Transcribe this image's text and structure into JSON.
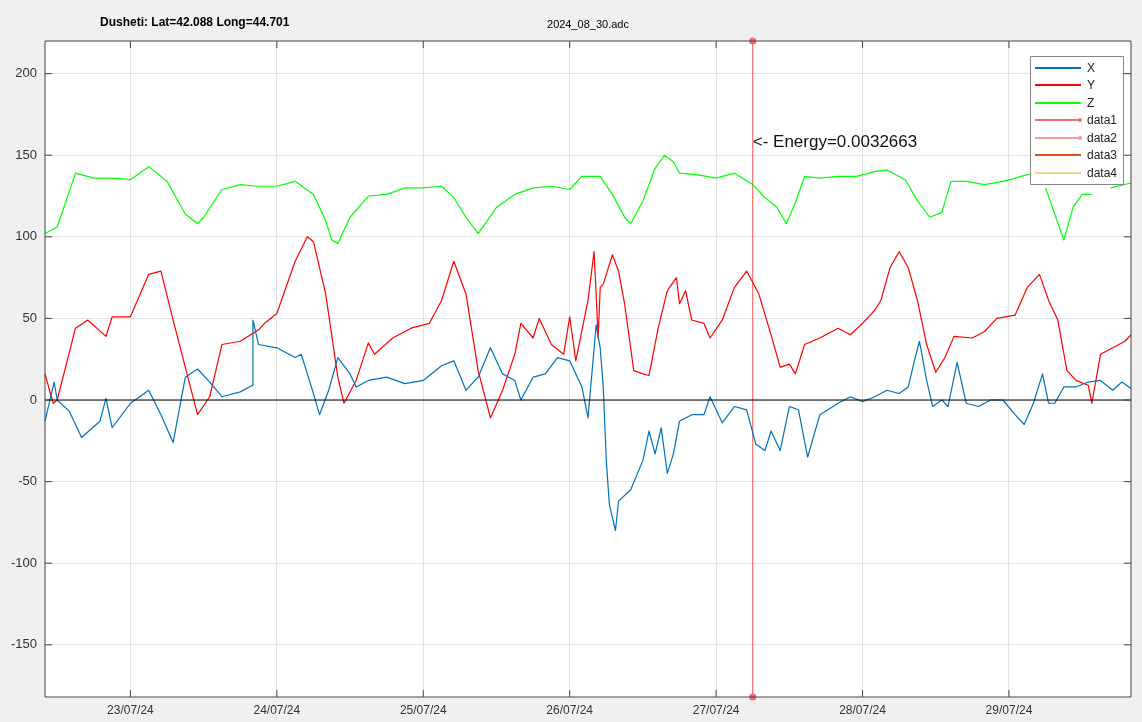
{
  "chart_data": {
    "type": "line",
    "title": "Dusheti: Lat=42.088 Long=44.701",
    "subtitle": "2024_08_30.adc",
    "xlim": [
      "2024-07-22T10:00",
      "2024-07-29T20:00"
    ],
    "xticks": [
      {
        "value": "2024-07-23",
        "label": "23/07/24"
      },
      {
        "value": "2024-07-24",
        "label": "24/07/24"
      },
      {
        "value": "2024-07-25",
        "label": "25/07/24"
      },
      {
        "value": "2024-07-26",
        "label": "26/07/24"
      },
      {
        "value": "2024-07-27",
        "label": "27/07/24"
      },
      {
        "value": "2024-07-28",
        "label": "28/07/24"
      },
      {
        "value": "2024-07-29",
        "label": "29/07/24"
      }
    ],
    "ylim": [
      -182,
      220
    ],
    "yticks": [
      -150,
      -100,
      -50,
      0,
      50,
      100,
      150,
      200
    ],
    "grid": true,
    "legend": "top right",
    "line_style": "solid",
    "ref_lines": [
      {
        "axis": "y",
        "value": 0,
        "color": "#000000"
      }
    ],
    "annotations": [
      {
        "text": "<- Energy=0.0032663",
        "x": "2024-07-27T06:00",
        "y": 158
      }
    ],
    "series": [
      {
        "name": "X",
        "color": "#0072bd",
        "x": [
          "2024-07-22T10:00",
          "2024-07-22T11:30",
          "2024-07-22T12:00",
          "2024-07-22T14:00",
          "2024-07-22T16:00",
          "2024-07-22T19:00",
          "2024-07-22T20:00",
          "2024-07-22T21:00",
          "2024-07-23T00:00",
          "2024-07-23T03:00",
          "2024-07-23T05:00",
          "2024-07-23T07:00",
          "2024-07-23T09:00",
          "2024-07-23T11:00",
          "2024-07-23T13:00",
          "2024-07-23T15:00",
          "2024-07-23T18:00",
          "2024-07-23T20:00",
          "2024-07-23T20:05",
          "2024-07-23T21:00",
          "2024-07-24T00:00",
          "2024-07-24T03:00",
          "2024-07-24T04:00",
          "2024-07-24T06:00",
          "2024-07-24T07:00",
          "2024-07-24T08:30",
          "2024-07-24T10:00",
          "2024-07-24T12:00",
          "2024-07-24T13:00",
          "2024-07-24T15:00",
          "2024-07-24T18:00",
          "2024-07-24T21:00",
          "2024-07-25T00:00",
          "2024-07-25T03:00",
          "2024-07-25T05:00",
          "2024-07-25T07:00",
          "2024-07-25T09:00",
          "2024-07-25T11:00",
          "2024-07-25T13:00",
          "2024-07-25T15:00",
          "2024-07-25T16:00",
          "2024-07-25T18:00",
          "2024-07-25T20:00",
          "2024-07-25T22:00",
          "2024-07-26T00:00",
          "2024-07-26T02:00",
          "2024-07-26T03:00",
          "2024-07-26T04:20",
          "2024-07-26T05:00",
          "2024-07-26T05:30",
          "2024-07-26T06:00",
          "2024-07-26T06:30",
          "2024-07-26T07:30",
          "2024-07-26T08:00",
          "2024-07-26T10:00",
          "2024-07-26T12:00",
          "2024-07-26T13:00",
          "2024-07-26T14:00",
          "2024-07-26T15:00",
          "2024-07-26T16:00",
          "2024-07-26T17:00",
          "2024-07-26T18:00",
          "2024-07-26T20:00",
          "2024-07-26T22:00",
          "2024-07-26T23:00",
          "2024-07-27T01:00",
          "2024-07-27T03:00",
          "2024-07-27T05:00",
          "2024-07-27T06:30",
          "2024-07-27T08:00",
          "2024-07-27T09:00",
          "2024-07-27T10:30",
          "2024-07-27T12:00",
          "2024-07-27T13:30",
          "2024-07-27T15:00",
          "2024-07-27T17:00",
          "2024-07-27T20:00",
          "2024-07-27T22:00",
          "2024-07-28T00:00",
          "2024-07-28T02:00",
          "2024-07-28T04:00",
          "2024-07-28T06:00",
          "2024-07-28T07:30",
          "2024-07-28T08:30",
          "2024-07-28T09:20",
          "2024-07-28T10:30",
          "2024-07-28T11:30",
          "2024-07-28T13:00",
          "2024-07-28T14:00",
          "2024-07-28T15:30",
          "2024-07-28T17:00",
          "2024-07-28T19:00",
          "2024-07-28T21:00",
          "2024-07-28T23:00",
          "2024-07-29T01:00",
          "2024-07-29T02:30",
          "2024-07-29T04:00",
          "2024-07-29T05:30",
          "2024-07-29T06:30",
          "2024-07-29T07:30",
          "2024-07-29T09:00",
          "2024-07-29T11:00",
          "2024-07-29T13:00",
          "2024-07-29T15:00",
          "2024-07-29T17:00",
          "2024-07-29T18:30",
          "2024-07-29T20:00"
        ],
        "values": [
          -13,
          11,
          0,
          -7,
          -23,
          -13,
          1,
          -17,
          -2,
          6,
          -9,
          -26,
          14,
          19,
          11,
          2,
          5,
          9,
          49,
          34,
          32,
          26,
          28,
          4,
          -9,
          6,
          26,
          16,
          8,
          12,
          14,
          10,
          12,
          21,
          24,
          6,
          14,
          32,
          16,
          12,
          0,
          14,
          16,
          26,
          24,
          8,
          -11,
          46,
          32,
          8,
          -37,
          -64,
          -80,
          -62,
          -55,
          -37,
          -19,
          -33,
          -17,
          -45,
          -33,
          -13,
          -9,
          -9,
          2,
          -14,
          -4,
          -6,
          -27,
          -31,
          -19,
          -31,
          -4,
          -6,
          -35,
          -9,
          -2,
          2,
          -1,
          2,
          6,
          4,
          8,
          24,
          36,
          12,
          -4,
          0,
          -4,
          23,
          -2,
          -4,
          0,
          0,
          -9,
          -15,
          -2,
          16,
          -2,
          -2,
          8,
          8,
          11,
          12,
          6,
          11,
          7
        ]
      },
      {
        "name": "Y",
        "color": "#ff0000",
        "x": [
          "2024-07-22T10:00",
          "2024-07-22T11:20",
          "2024-07-22T12:00",
          "2024-07-22T15:00",
          "2024-07-22T17:00",
          "2024-07-22T20:00",
          "2024-07-22T21:00",
          "2024-07-23T00:00",
          "2024-07-23T03:00",
          "2024-07-23T05:00",
          "2024-07-23T07:00",
          "2024-07-23T09:00",
          "2024-07-23T11:00",
          "2024-07-23T13:00",
          "2024-07-23T15:00",
          "2024-07-23T18:00",
          "2024-07-23T21:00",
          "2024-07-23T22:00",
          "2024-07-24T00:00",
          "2024-07-24T03:00",
          "2024-07-24T05:00",
          "2024-07-24T06:00",
          "2024-07-24T08:00",
          "2024-07-24T10:00",
          "2024-07-24T11:00",
          "2024-07-24T13:00",
          "2024-07-24T15:00",
          "2024-07-24T16:00",
          "2024-07-24T19:00",
          "2024-07-24T22:00",
          "2024-07-25T01:00",
          "2024-07-25T03:00",
          "2024-07-25T05:00",
          "2024-07-25T07:00",
          "2024-07-25T09:00",
          "2024-07-25T11:00",
          "2024-07-25T13:00",
          "2024-07-25T15:00",
          "2024-07-25T16:00",
          "2024-07-25T18:00",
          "2024-07-25T19:00",
          "2024-07-25T21:00",
          "2024-07-25T23:00",
          "2024-07-26T00:00",
          "2024-07-26T01:00",
          "2024-07-26T03:00",
          "2024-07-26T04:00",
          "2024-07-26T04:40",
          "2024-07-26T05:00",
          "2024-07-26T05:30",
          "2024-07-26T06:00",
          "2024-07-26T07:00",
          "2024-07-26T08:00",
          "2024-07-26T09:00",
          "2024-07-26T10:30",
          "2024-07-26T12:00",
          "2024-07-26T13:00",
          "2024-07-26T14:30",
          "2024-07-26T16:00",
          "2024-07-26T17:30",
          "2024-07-26T18:00",
          "2024-07-26T19:00",
          "2024-07-26T20:00",
          "2024-07-26T22:00",
          "2024-07-26T23:00",
          "2024-07-27T01:00",
          "2024-07-27T03:00",
          "2024-07-27T05:00",
          "2024-07-27T07:00",
          "2024-07-27T09:00",
          "2024-07-27T10:30",
          "2024-07-27T12:00",
          "2024-07-27T13:00",
          "2024-07-27T14:30",
          "2024-07-27T17:00",
          "2024-07-27T20:00",
          "2024-07-27T22:00",
          "2024-07-28T00:00",
          "2024-07-28T02:00",
          "2024-07-28T03:00",
          "2024-07-28T04:30",
          "2024-07-28T06:00",
          "2024-07-28T07:30",
          "2024-07-28T09:00",
          "2024-07-28T10:30",
          "2024-07-28T12:00",
          "2024-07-28T13:30",
          "2024-07-28T15:00",
          "2024-07-28T18:00",
          "2024-07-28T20:00",
          "2024-07-28T22:00",
          "2024-07-29T01:00",
          "2024-07-29T03:00",
          "2024-07-29T05:00",
          "2024-07-29T06:30",
          "2024-07-29T08:00",
          "2024-07-29T09:30",
          "2024-07-29T11:00",
          "2024-07-29T13:00",
          "2024-07-29T13:35",
          "2024-07-29T15:00",
          "2024-07-29T17:00",
          "2024-07-29T19:00",
          "2024-07-29T20:00"
        ],
        "values": [
          16,
          -2,
          0,
          44,
          49,
          39,
          51,
          51,
          77,
          79,
          49,
          20,
          -9,
          2,
          34,
          36,
          43,
          47,
          53,
          85,
          100,
          97,
          65,
          14,
          -2,
          12,
          35,
          28,
          38,
          44,
          47,
          61,
          85,
          65,
          18,
          -11,
          6,
          28,
          47,
          38,
          50,
          34,
          28,
          51,
          24,
          61,
          91,
          38,
          69,
          71,
          77,
          89,
          79,
          59,
          18,
          16,
          15,
          44,
          67,
          75,
          59,
          67,
          49,
          47,
          38,
          49,
          69,
          79,
          65,
          40,
          20,
          22,
          16,
          34,
          38,
          44,
          40,
          47,
          55,
          61,
          81,
          91,
          81,
          61,
          34,
          17,
          26,
          39,
          38,
          42,
          50,
          52,
          69,
          77,
          61,
          49,
          18,
          12,
          9,
          -2,
          28,
          32,
          36,
          40
        ]
      },
      {
        "name": "Z",
        "color": "#00ff00",
        "x": [
          "2024-07-22T10:00",
          "2024-07-22T12:00",
          "2024-07-22T15:00",
          "2024-07-22T18:00",
          "2024-07-22T21:00",
          "2024-07-23T00:00",
          "2024-07-23T03:00",
          "2024-07-23T06:00",
          "2024-07-23T09:00",
          "2024-07-23T11:00",
          "2024-07-23T12:00",
          "2024-07-23T15:00",
          "2024-07-23T18:00",
          "2024-07-23T21:00",
          "2024-07-24T00:00",
          "2024-07-24T03:00",
          "2024-07-24T06:00",
          "2024-07-24T08:00",
          "2024-07-24T09:00",
          "2024-07-24T10:00",
          "2024-07-24T12:00",
          "2024-07-24T15:00",
          "2024-07-24T18:00",
          "2024-07-24T21:00",
          "2024-07-25T00:00",
          "2024-07-25T03:00",
          "2024-07-25T05:00",
          "2024-07-25T07:00",
          "2024-07-25T09:00",
          "2024-07-25T12:00",
          "2024-07-25T15:00",
          "2024-07-25T18:00",
          "2024-07-25T21:00",
          "2024-07-26T00:00",
          "2024-07-26T02:00",
          "2024-07-26T05:00",
          "2024-07-26T07:00",
          "2024-07-26T09:00",
          "2024-07-26T10:00",
          "2024-07-26T12:00",
          "2024-07-26T14:00",
          "2024-07-26T15:30",
          "2024-07-26T17:00",
          "2024-07-26T18:00",
          "2024-07-26T21:00",
          "2024-07-27T00:00",
          "2024-07-27T03:00",
          "2024-07-27T06:00",
          "2024-07-27T08:00",
          "2024-07-27T10:00",
          "2024-07-27T11:30",
          "2024-07-27T13:00",
          "2024-07-27T14:30",
          "2024-07-27T17:00",
          "2024-07-27T20:00",
          "2024-07-27T23:00",
          "2024-07-28T02:00",
          "2024-07-28T04:00",
          "2024-07-28T07:00",
          "2024-07-28T09:00",
          "2024-07-28T11:00",
          "2024-07-28T13:00",
          "2024-07-28T14:30",
          "2024-07-28T17:00",
          "2024-07-28T20:00",
          "2024-07-28T23:00",
          "2024-07-29T02:00",
          "2024-07-29T04:00",
          "2024-07-29T05:00",
          "2024-07-29T06:00",
          "2024-07-29T07:30",
          "2024-07-29T09:00",
          "2024-07-29T10:30",
          "2024-07-29T12:00",
          "2024-07-29T13:30",
          "2024-07-29T15:00",
          "2024-07-29T16:40",
          "2024-07-29T20:00"
        ],
        "values": [
          102,
          106,
          139,
          136,
          136,
          135,
          143,
          134,
          114,
          108,
          112,
          129,
          132,
          131,
          131,
          134,
          126,
          110,
          98,
          96,
          112,
          125,
          126,
          130,
          130,
          131,
          124,
          112,
          102,
          118,
          126,
          130,
          131,
          129,
          137,
          137,
          126,
          112,
          108,
          122,
          142,
          150,
          146,
          139,
          138,
          136,
          139,
          132,
          124,
          118,
          108,
          121,
          137,
          136,
          137,
          137,
          140,
          141,
          135,
          122,
          112,
          115,
          134,
          134,
          132,
          134,
          137,
          139,
          null,
          130,
          114,
          98,
          118,
          126,
          126,
          null,
          130,
          133
        ]
      },
      {
        "name": "data1",
        "color": "#f26b6b",
        "marker": "circle",
        "x": [
          "2024-07-27T06:00",
          "2024-07-27T06:00"
        ],
        "values": [
          -182,
          220
        ]
      },
      {
        "name": "data2",
        "color": "#f59a9a",
        "marker": "circle"
      },
      {
        "name": "data3",
        "color": "#d95319"
      },
      {
        "name": "data4",
        "color": "#f5d08a"
      }
    ]
  }
}
